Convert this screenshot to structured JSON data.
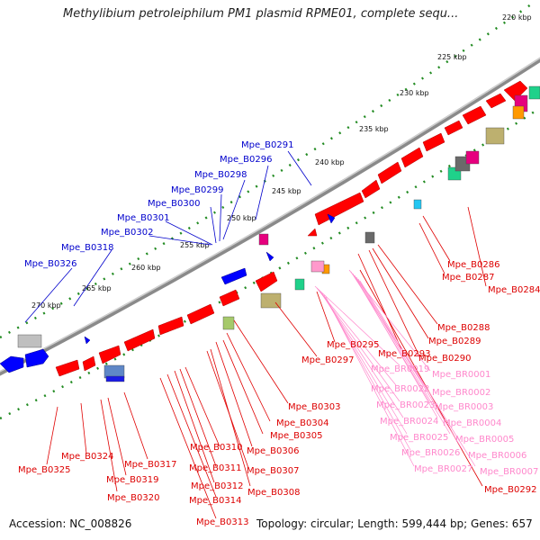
{
  "title": "Methylibium petroleiphilum PM1 plasmid RPME01, complete sequ...",
  "footer": {
    "accession": "Accession: NC_008826",
    "summary": "Topology: circular; Length: 599,444 bp; Genes: 657"
  },
  "scale_labels": [
    "220 kbp",
    "225 kbp",
    "230 kbp",
    "235 kbp",
    "240 kbp",
    "245 kbp",
    "250 kbp",
    "255 kbp",
    "260 kbp",
    "265 kbp",
    "270 kbp"
  ],
  "blue_labels": [
    "Mpe_B0291",
    "Mpe_B0296",
    "Mpe_B0298",
    "Mpe_B0299",
    "Mpe_B0300",
    "Mpe_B0301",
    "Mpe_B0302",
    "Mpe_B0318",
    "Mpe_B0326"
  ],
  "red_labels": [
    "Mpe_B0286",
    "Mpe_B0287",
    "Mpe_B0284",
    "Mpe_B0288",
    "Mpe_B0289",
    "Mpe_B0290",
    "Mpe_B0293",
    "Mpe_B0295",
    "Mpe_B0297",
    "Mpe_B0303",
    "Mpe_B0304",
    "Mpe_B0305",
    "Mpe_B0306",
    "Mpe_B0307",
    "Mpe_B0308",
    "Mpe_B0310",
    "Mpe_B0311",
    "Mpe_B0312",
    "Mpe_B0314",
    "Mpe_B0313",
    "Mpe_B0317",
    "Mpe_B0319",
    "Mpe_B0320",
    "Mpe_B0324",
    "Mpe_B0325",
    "Mpe_B0292"
  ],
  "pink_labels": [
    "Mpe_BR0001",
    "Mpe_BR0002",
    "Mpe_BR0003",
    "Mpe_BR0004",
    "Mpe_BR0005",
    "Mpe_BR0006",
    "Mpe_BR0007",
    "Mpe_BR0019",
    "Mpe_BR0022",
    "Mpe_BR0023",
    "Mpe_BR0024",
    "Mpe_BR0025",
    "Mpe_BR0026",
    "Mpe_BR0027"
  ],
  "colors": {
    "forward_gene": "#ff0000",
    "reverse_gene": "#0000ff",
    "rna_gene": "#ff99cc",
    "backbone": "#888888",
    "tick": "#228b22"
  }
}
